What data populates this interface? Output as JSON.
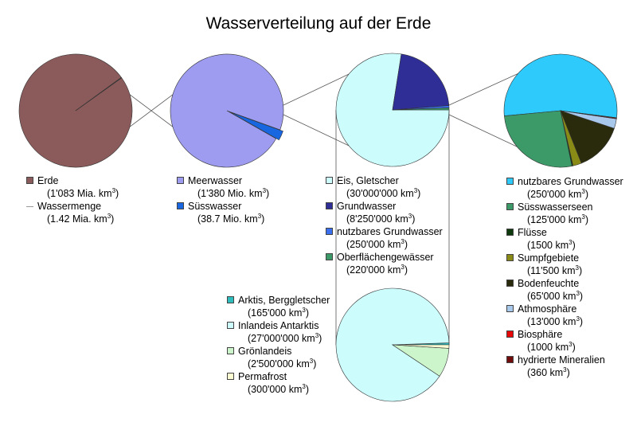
{
  "title": "Wasserverteilung auf der Erde",
  "unit_super": "3",
  "chart_data": [
    {
      "type": "pie",
      "id": "pie1",
      "slices": [
        {
          "label": "Erde",
          "value_text": "(1'083 Mia. km",
          "value": 1083000000000,
          "color": "#8b5a5a"
        },
        {
          "label": "Wassermenge",
          "value_text": "(1.42 Mia. km",
          "value": 1420000000,
          "color": "#999999"
        }
      ]
    },
    {
      "type": "pie",
      "id": "pie2",
      "slices": [
        {
          "label": "Meerwasser",
          "value_text": "(1'380 Mio. km",
          "value": 1380000000,
          "color": "#9d9cf0"
        },
        {
          "label": "Süsswasser",
          "value_text": "(38.7 Mio. km",
          "value": 38700000,
          "color": "#1866e0"
        }
      ]
    },
    {
      "type": "pie",
      "id": "pie3",
      "slices": [
        {
          "label": "Eis, Gletscher",
          "value_text": "(30'000'000 km",
          "value": 30000000,
          "color": "#ccfcfc"
        },
        {
          "label": "Grundwasser",
          "value_text": "(8'250'000 km",
          "value": 8250000,
          "color": "#2e2e96"
        },
        {
          "label": "nutzbares Grundwasser",
          "value_text": "(250'000 km",
          "value": 250000,
          "color": "#3a6ff0"
        },
        {
          "label": "Oberflächengewässer",
          "value_text": "(220'000 km",
          "value": 220000,
          "color": "#3b9a68"
        }
      ]
    },
    {
      "type": "pie",
      "id": "pie4",
      "slices": [
        {
          "label": "nutzbares Grundwasser",
          "value_text": "(250'000 km",
          "value": 250000,
          "color": "#2ecafc"
        },
        {
          "label": "Süsswasserseen",
          "value_text": "(125'000 km",
          "value": 125000,
          "color": "#3b9a68"
        },
        {
          "label": "Flüsse",
          "value_text": "(1500 km",
          "value": 1500,
          "color": "#0e3a0e"
        },
        {
          "label": "Sumpfgebiete",
          "value_text": "(11'500 km",
          "value": 11500,
          "color": "#8a8a16"
        },
        {
          "label": "Bodenfeuchte",
          "value_text": "(65'000 km",
          "value": 65000,
          "color": "#2a2a0c"
        },
        {
          "label": "Athmosphäre",
          "value_text": "(13'000 km",
          "value": 13000,
          "color": "#a8c8ec"
        },
        {
          "label": "Biosphäre",
          "value_text": "(1000 km",
          "value": 1000,
          "color": "#e80808"
        },
        {
          "label": "hydrierte Mineralien",
          "value_text": "(360 km",
          "value": 360,
          "color": "#700c0c"
        }
      ]
    },
    {
      "type": "pie",
      "id": "pie5",
      "slices": [
        {
          "label": "Arktis, Berggletscher",
          "value_text": "(165'000 km",
          "value": 165000,
          "color": "#2ebcbc"
        },
        {
          "label": "Inlandeis Antarktis",
          "value_text": "(27'000'000 km",
          "value": 27000000,
          "color": "#ccfcfc"
        },
        {
          "label": "Grönlandeis",
          "value_text": "(2'500'000 km",
          "value": 2500000,
          "color": "#ccf5cc"
        },
        {
          "label": "Permafrost",
          "value_text": "(300'000 km",
          "value": 300000,
          "color": "#fcfcd2"
        }
      ]
    }
  ]
}
